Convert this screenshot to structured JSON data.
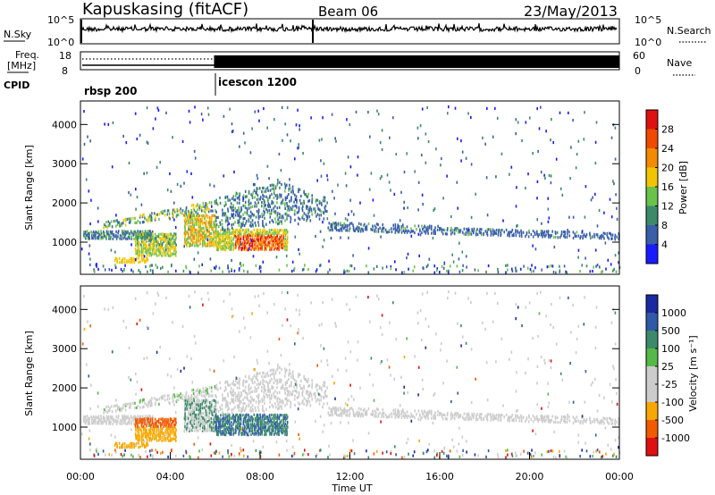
{
  "header": {
    "station": "Kapuskasing (fitACF)",
    "beam": "Beam 06",
    "date": "23/May/2013"
  },
  "noise_panel": {
    "left_label": "N.Sky",
    "right_label": "N.Search",
    "left_ticks": [
      "10^5",
      "10^0"
    ],
    "right_ticks": [
      "10^5",
      "10^0"
    ]
  },
  "freq_panel": {
    "left_label_1": "Freq.",
    "left_label_2": "[MHz]",
    "right_label": "Nave",
    "left_ticks": [
      "18",
      "8"
    ],
    "right_ticks": [
      "60",
      "0"
    ]
  },
  "cpid_panel": {
    "label": "CPID",
    "modes": [
      {
        "name": "rbsp 200",
        "start_hour": 0
      },
      {
        "name": "icescon 1200",
        "start_hour": 5.95
      }
    ]
  },
  "colors": {
    "power": [
      "#1a1aff",
      "#3a5fa8",
      "#3c8a6a",
      "#6ac24a",
      "#f2c400",
      "#f48a00",
      "#f04a00",
      "#e01010"
    ],
    "velocity": [
      "#e01010",
      "#f25a00",
      "#f7a800",
      "#cccccc",
      "#cccccc",
      "#56b848",
      "#3c8a6a",
      "#2e5aa8",
      "#1a2aa0"
    ]
  },
  "chart_data": [
    {
      "type": "heatmap",
      "name": "power",
      "ylabel": "Slant Range [km]",
      "xlim": [
        0,
        24
      ],
      "ylim": [
        180,
        4600
      ],
      "yticks": [
        1000,
        2000,
        3000,
        4000
      ],
      "colorbar": {
        "label": "Power [dB]",
        "tick_labels": [
          "4",
          "8",
          "12",
          "16",
          "20",
          "24",
          "28"
        ],
        "range": [
          0,
          32
        ]
      }
    },
    {
      "type": "heatmap",
      "name": "velocity",
      "ylabel": "Slant Range [km]",
      "xlabel": "Time UT",
      "xlim": [
        0,
        24
      ],
      "ylim": [
        180,
        4600
      ],
      "yticks": [
        1000,
        2000,
        3000,
        4000
      ],
      "xtick_labels": [
        "00:00",
        "04:00",
        "08:00",
        "12:00",
        "16:00",
        "20:00",
        "00:00"
      ],
      "colorbar": {
        "label": "Velocity [m s⁻¹]",
        "tick_labels": [
          "1000",
          "500",
          "100",
          "25",
          "-25",
          "-100",
          "-500",
          "-1000"
        ]
      }
    }
  ]
}
